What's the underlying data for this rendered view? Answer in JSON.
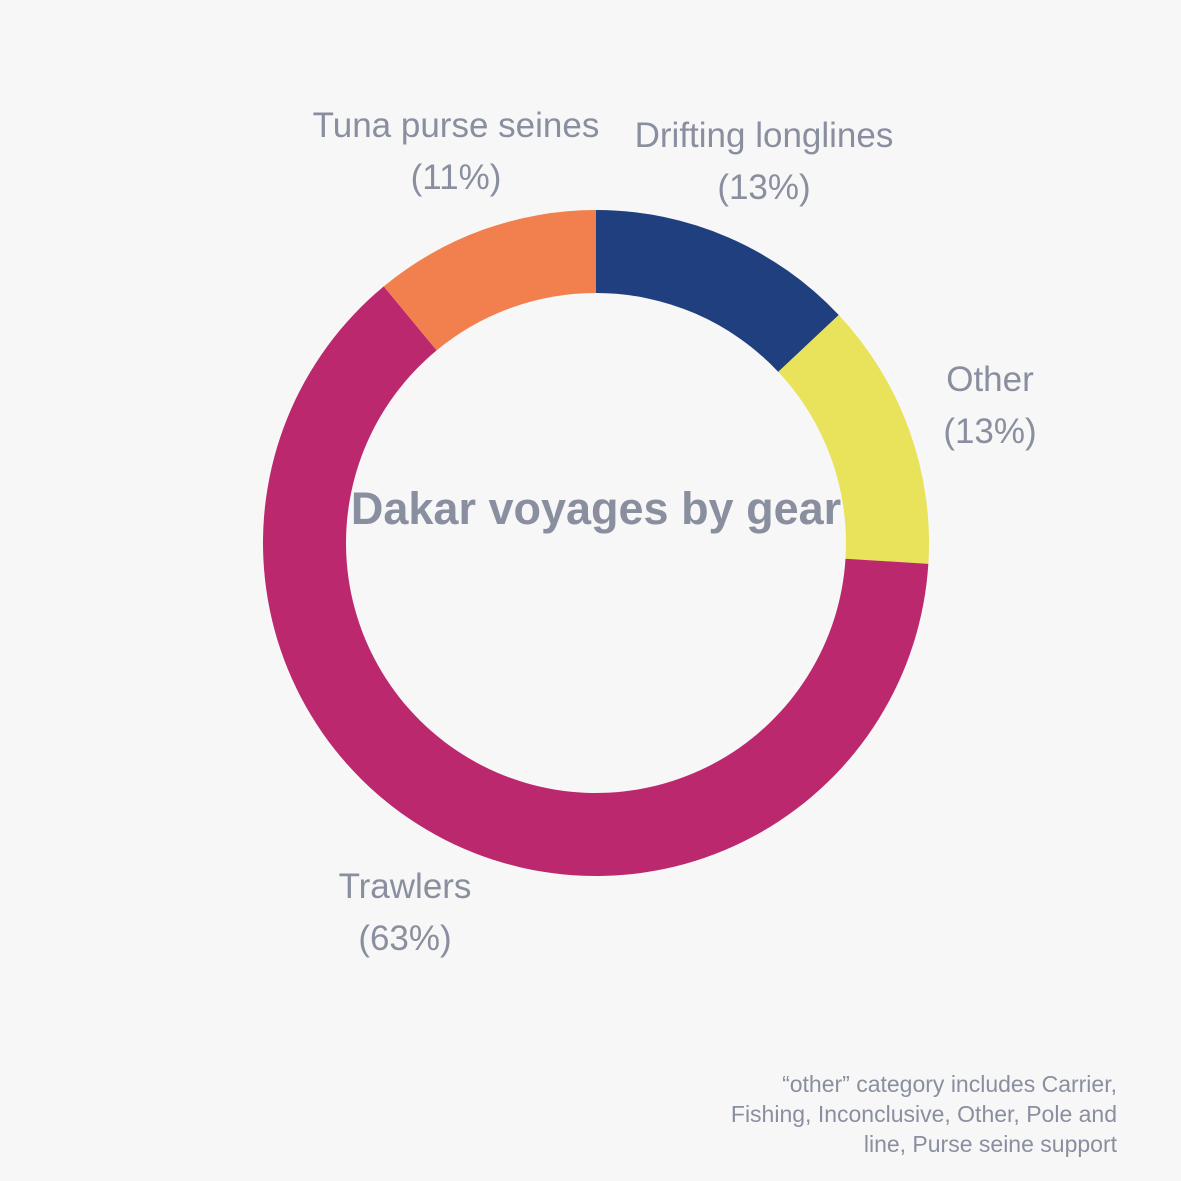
{
  "chart_data": {
    "type": "pie",
    "title": "Dakar voyages by gear",
    "categories": [
      "Drifting longlines",
      "Other",
      "Trawlers",
      "Tuna purse seines"
    ],
    "values": [
      13,
      13,
      63,
      11
    ],
    "unit": "%",
    "labels": [
      {
        "name": "Drifting longlines",
        "pct": "(13%)"
      },
      {
        "name": "Other",
        "pct": "(13%)"
      },
      {
        "name": "Trawlers",
        "pct": "(63%)"
      },
      {
        "name": "Tuna purse seines",
        "pct": "(11%)"
      }
    ],
    "colors": [
      "#1f3f7e",
      "#e8e35a",
      "#bb286e",
      "#f2804f"
    ],
    "donut": true,
    "legend": "none"
  },
  "footnote": "“other” category includes Carrier, Fishing, Inconclusive, Other, Pole and line, Purse seine support"
}
